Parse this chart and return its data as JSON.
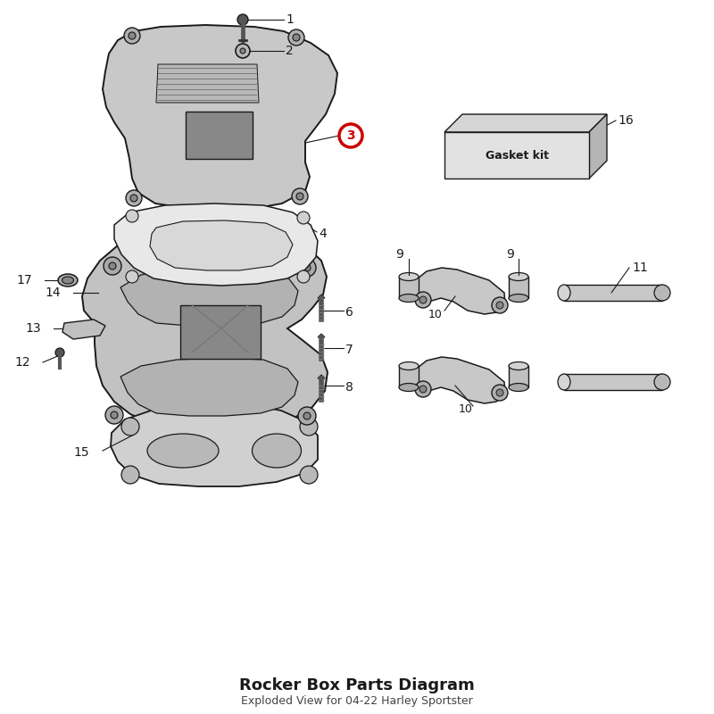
{
  "bg_color": "#ffffff",
  "line_color": "#1a1a1a",
  "part_fill": "#d0d0d0",
  "part_fill_light": "#e0e0e0",
  "part_fill_dark": "#b8b8b8",
  "highlight_circle_color": "#cc0000",
  "title": "Rocker Box Parts Diagram",
  "subtitle": "Exploded View for 04-22 Harley Sportster",
  "gasket_kit_label": "Gasket kit"
}
